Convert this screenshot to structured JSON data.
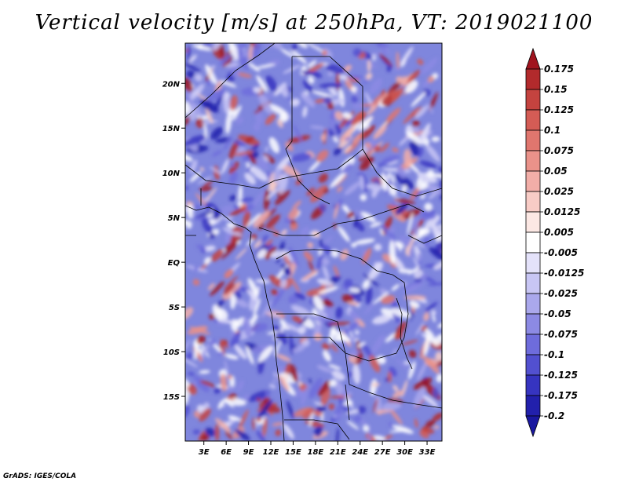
{
  "chart_data": {
    "type": "heatmap",
    "title": "Vertical velocity [m/s] at 250hPa, VT: 2019021100",
    "variable": "Vertical velocity",
    "units": "m/s",
    "level": "250hPa",
    "valid_time": "2019021100",
    "x_axis": {
      "ticks": [
        3,
        6,
        9,
        12,
        15,
        18,
        21,
        24,
        27,
        30,
        33
      ],
      "tick_labels": [
        "3E",
        "6E",
        "9E",
        "12E",
        "15E",
        "18E",
        "21E",
        "24E",
        "27E",
        "30E",
        "33E"
      ],
      "range": [
        0.5,
        35
      ]
    },
    "y_axis": {
      "ticks": [
        20,
        15,
        10,
        5,
        0,
        -5,
        -10,
        -15
      ],
      "tick_labels": [
        "20N",
        "15N",
        "10N",
        "5N",
        "EQ",
        "5S",
        "10S",
        "15S"
      ],
      "range": [
        -20,
        24.5
      ]
    },
    "colorbar": {
      "levels": [
        0.175,
        0.15,
        0.125,
        0.1,
        0.075,
        0.05,
        0.025,
        0.0125,
        0.005,
        -0.005,
        -0.0125,
        -0.025,
        -0.05,
        -0.075,
        -0.1,
        -0.125,
        -0.175,
        -0.2
      ],
      "labels": [
        "0.175",
        "0.15",
        "0.125",
        "0.1",
        "0.075",
        "0.05",
        "0.025",
        "0.0125",
        "0.005",
        "-0.005",
        "-0.0125",
        "-0.025",
        "-0.05",
        "-0.075",
        "-0.1",
        "-0.125",
        "-0.175",
        "-0.2"
      ],
      "colors": [
        "#a0141e",
        "#b22a2c",
        "#c4433f",
        "#d45c55",
        "#e0766e",
        "#ea928a",
        "#f2aea8",
        "#f8ccc6",
        "#fce8e4",
        "#ffffff",
        "#e4e2fa",
        "#c8c6f4",
        "#aaa8ec",
        "#8c8ae4",
        "#6e6cdc",
        "#5250d0",
        "#3634c0",
        "#2220ac",
        "#1a18a0"
      ]
    },
    "background_color": "#7f86dd"
  },
  "credit": "GrADS: IGES/COLA"
}
